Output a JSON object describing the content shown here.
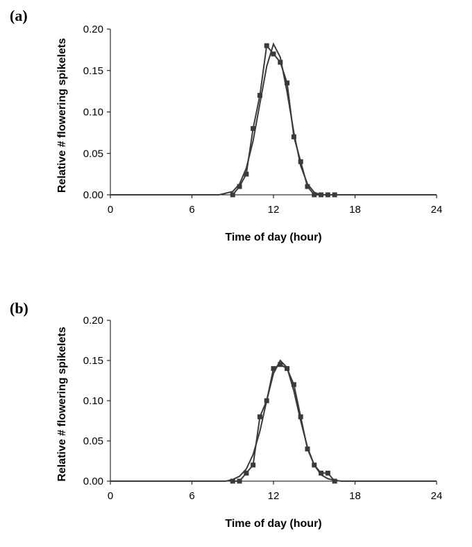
{
  "chart_data": [
    {
      "panel_label": "(a)",
      "type": "line",
      "xlabel": "Time of day (hour)",
      "ylabel": "Relative # flowering spikelets",
      "xlim": [
        0,
        24
      ],
      "ylim": [
        0,
        0.2
      ],
      "xticks": [
        "0",
        "6",
        "12",
        "18",
        "24"
      ],
      "yticks": [
        "0.00",
        "0.05",
        "0.10",
        "0.15",
        "0.20"
      ],
      "series": [
        {
          "style": "line-with-square-markers",
          "x": [
            9.0,
            9.5,
            10.0,
            10.5,
            11.0,
            11.5,
            12.0,
            12.5,
            13.0,
            13.5,
            14.0,
            14.5,
            15.0,
            15.5,
            16.0,
            16.5
          ],
          "y": [
            0.0,
            0.01,
            0.025,
            0.08,
            0.12,
            0.18,
            0.17,
            0.16,
            0.135,
            0.07,
            0.04,
            0.01,
            0.0,
            0.0,
            0.0,
            0.0
          ]
        },
        {
          "style": "smooth-fit-line",
          "x": [
            0,
            8.0,
            9.0,
            9.5,
            10.0,
            10.5,
            11.0,
            11.5,
            12.0,
            12.5,
            13.0,
            13.5,
            14.0,
            14.5,
            15.0,
            15.5,
            16.0,
            24
          ],
          "y": [
            0,
            0.0,
            0.004,
            0.013,
            0.032,
            0.065,
            0.11,
            0.155,
            0.182,
            0.166,
            0.124,
            0.075,
            0.035,
            0.013,
            0.003,
            0.0,
            0.0,
            0
          ]
        }
      ]
    },
    {
      "panel_label": "(b)",
      "type": "line",
      "xlabel": "Time of day (hour)",
      "ylabel": "Relative # flowering spikelets",
      "xlim": [
        0,
        24
      ],
      "ylim": [
        0,
        0.2
      ],
      "xticks": [
        "0",
        "6",
        "12",
        "18",
        "24"
      ],
      "yticks": [
        "0.00",
        "0.05",
        "0.10",
        "0.15",
        "0.20"
      ],
      "series": [
        {
          "style": "line-with-square-markers",
          "x": [
            9.0,
            9.5,
            10.0,
            10.5,
            11.0,
            11.5,
            12.0,
            12.5,
            13.0,
            13.5,
            14.0,
            14.5,
            15.0,
            15.5,
            16.0,
            16.5
          ],
          "y": [
            0.0,
            0.0,
            0.01,
            0.02,
            0.08,
            0.1,
            0.14,
            0.145,
            0.14,
            0.12,
            0.08,
            0.04,
            0.02,
            0.01,
            0.01,
            0.0
          ]
        },
        {
          "style": "smooth-fit-line",
          "x": [
            0,
            8.5,
            9.0,
            9.5,
            10.0,
            10.5,
            11.0,
            11.5,
            12.0,
            12.5,
            13.0,
            13.5,
            14.0,
            14.5,
            15.0,
            15.5,
            16.0,
            16.5,
            17.0,
            24
          ],
          "y": [
            0,
            0.0,
            0.002,
            0.006,
            0.015,
            0.033,
            0.062,
            0.1,
            0.134,
            0.15,
            0.141,
            0.112,
            0.075,
            0.042,
            0.02,
            0.008,
            0.003,
            0.001,
            0.0,
            0
          ]
        }
      ]
    }
  ]
}
